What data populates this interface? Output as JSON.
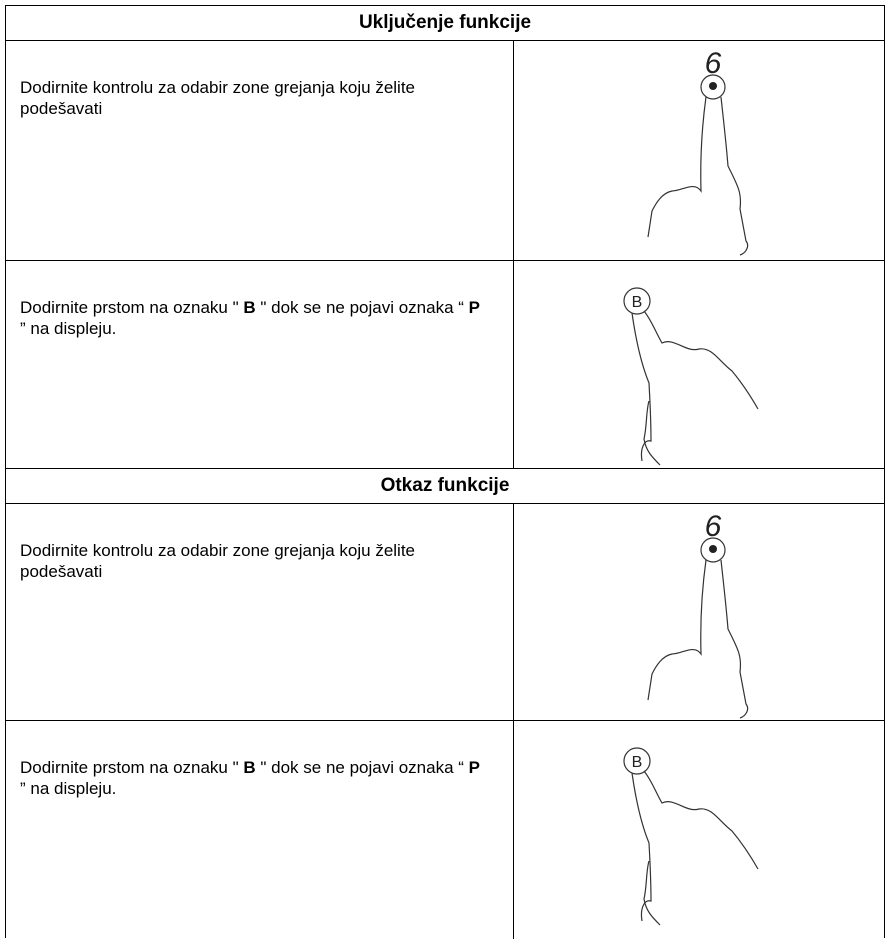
{
  "sections": [
    {
      "title": "Uključenje funkcije",
      "rows": [
        {
          "text": [
            "Dodirnite kontrolu za odabir zone grejanja koju želite podešavati"
          ],
          "display": "6"
        },
        {
          "text": [
            "Dodirnite prstom na oznaku \" ",
            "B",
            " \" dok se ne pojavi oznaka “ ",
            "P",
            " ” na displeju."
          ],
          "button": "B"
        }
      ]
    },
    {
      "title": "Otkaz funkcije",
      "rows": [
        {
          "text": [
            "Dodirnite kontrolu za odabir zone grejanja koju želite podešavati"
          ],
          "display": "6"
        },
        {
          "text": [
            "Dodirnite prstom na oznaku \" ",
            "B",
            " \" dok se ne pojavi oznaka “ ",
            "P",
            " ” na displeju."
          ],
          "button": "B"
        }
      ]
    }
  ]
}
